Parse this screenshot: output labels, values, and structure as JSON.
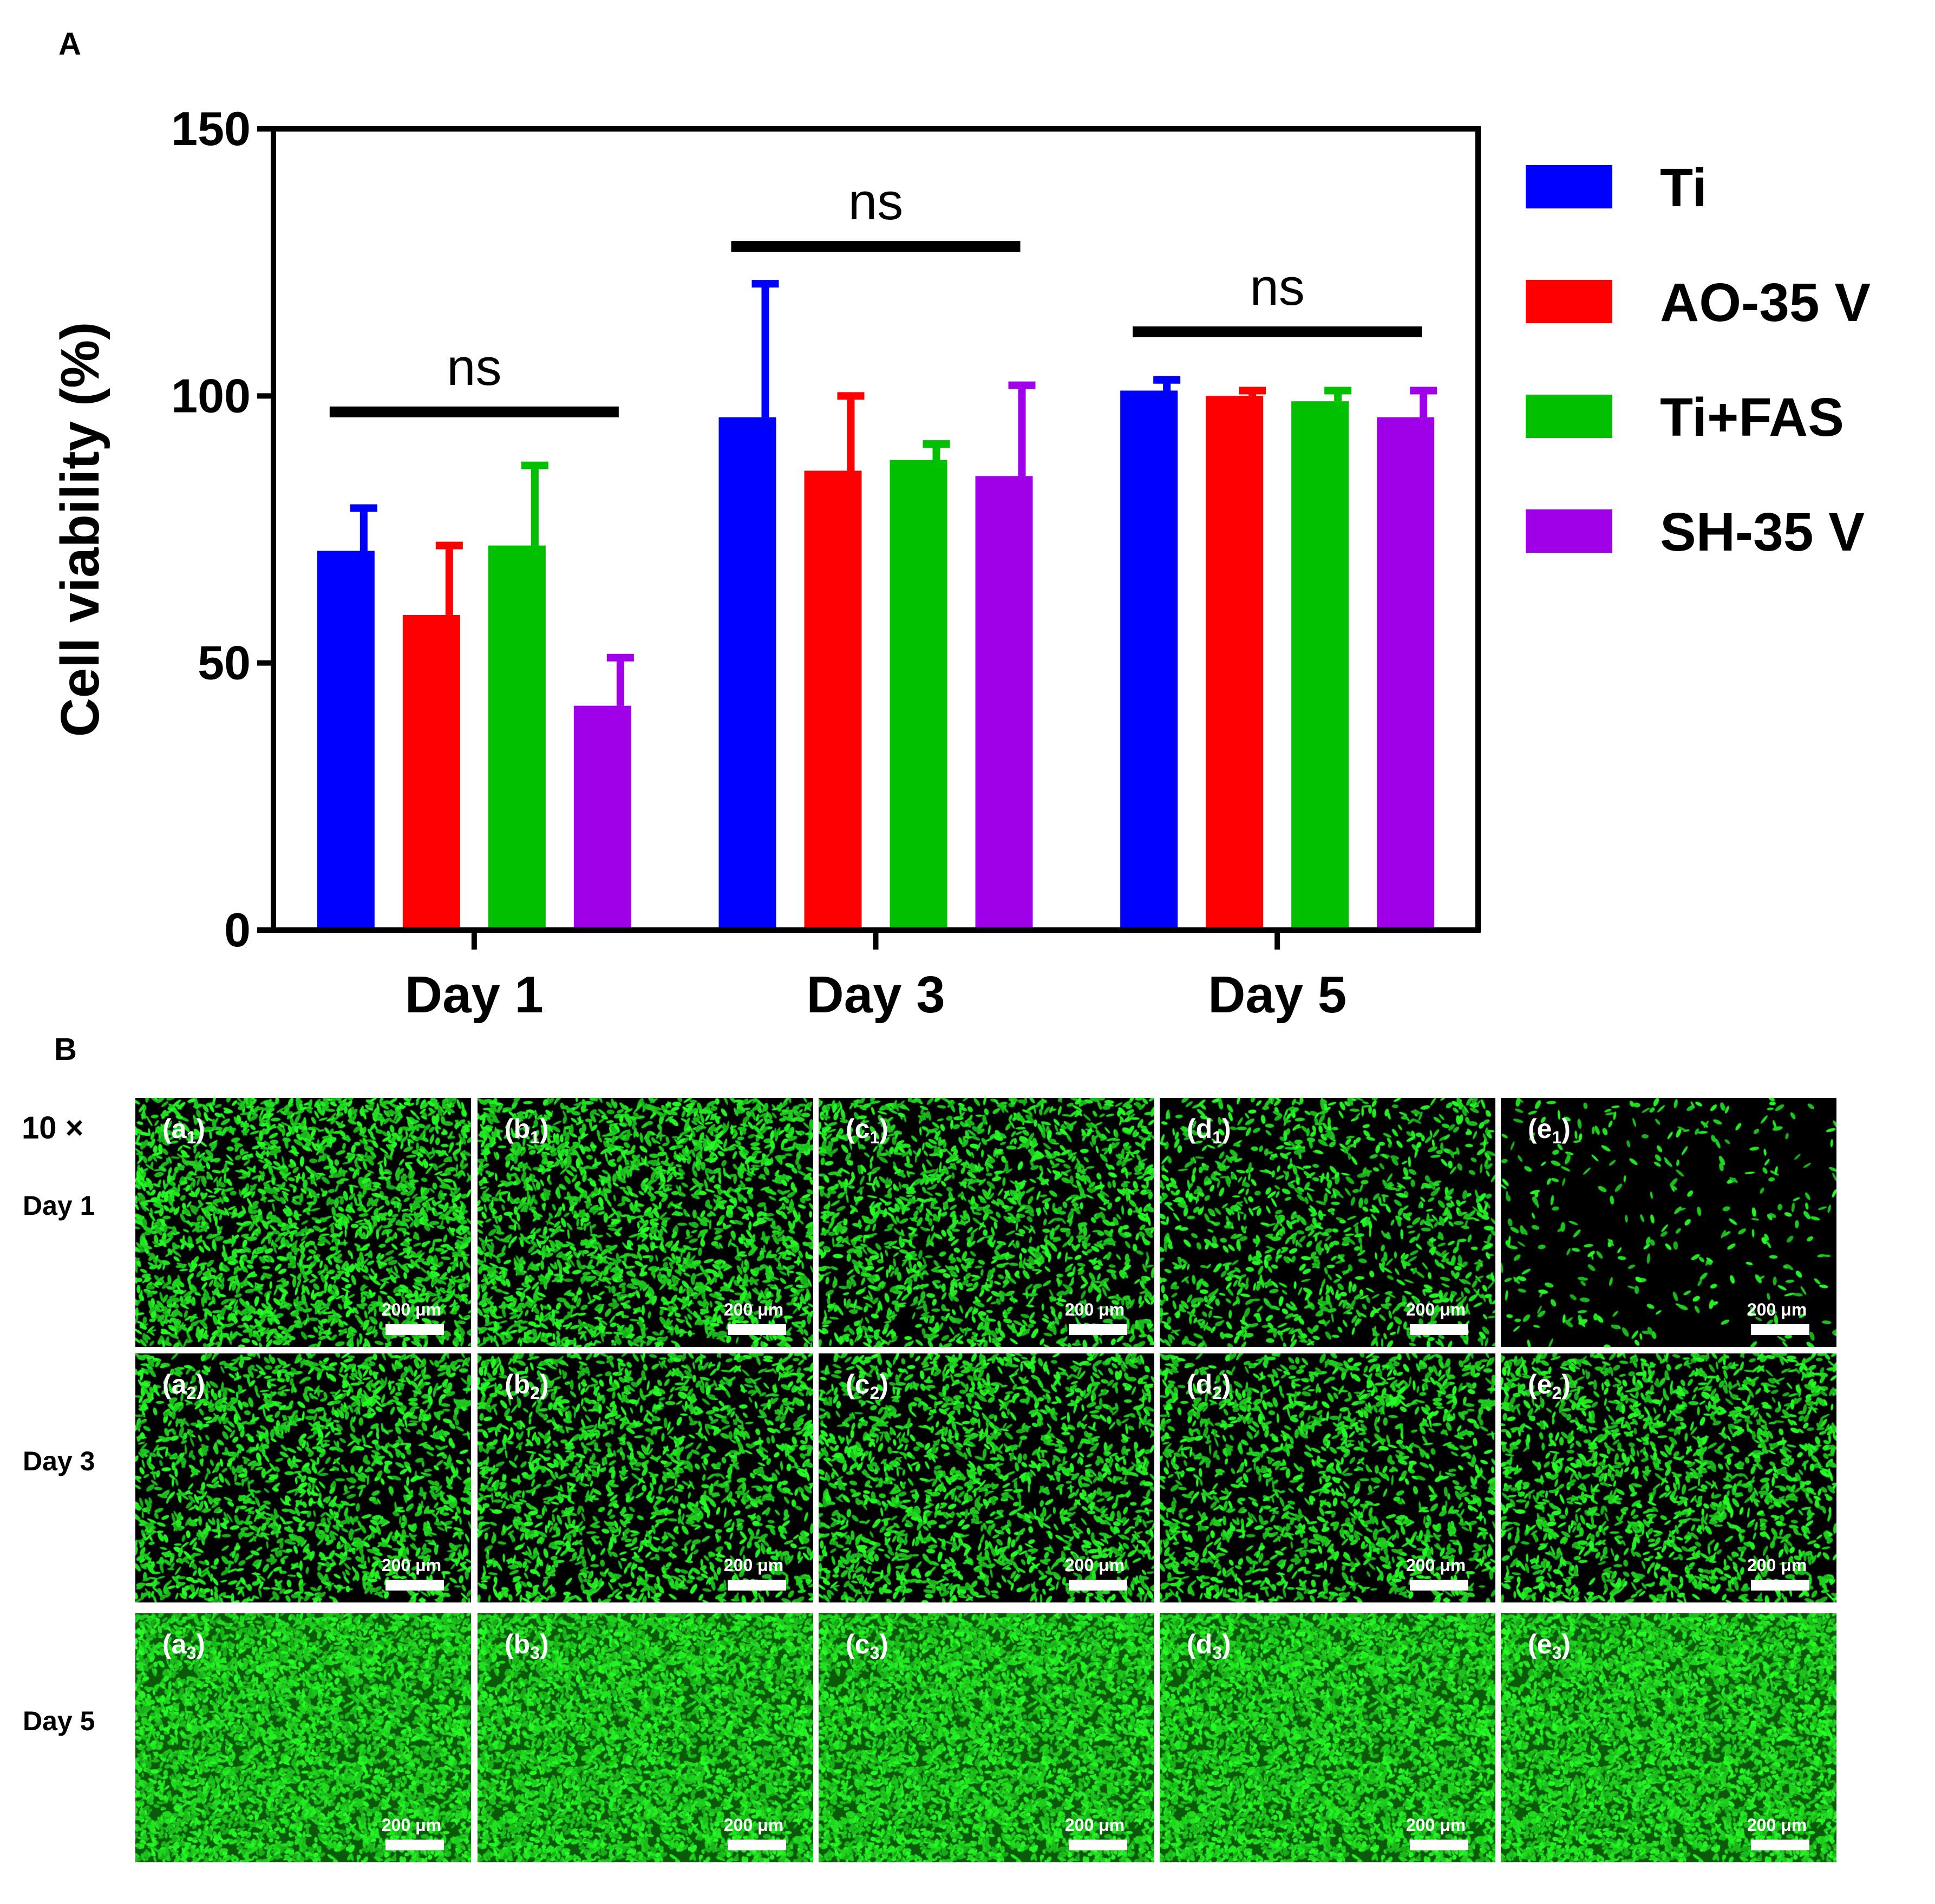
{
  "panel_a_label": "A",
  "panel_b_label": "B",
  "chart_data": {
    "type": "bar",
    "categories": [
      "Day 1",
      "Day 3",
      "Day 5"
    ],
    "ylabel": "Cell viability (%)",
    "ylim": [
      0,
      150
    ],
    "yticks": [
      0,
      50,
      100,
      150
    ],
    "legend_position": "right",
    "series": [
      {
        "name": "Ti",
        "color": "#0000ff",
        "values": [
          71,
          96,
          101
        ],
        "errors": [
          8,
          25,
          2
        ]
      },
      {
        "name": "AO-35 V",
        "color": "#ff0000",
        "values": [
          59,
          86,
          100
        ],
        "errors": [
          13,
          14,
          1
        ]
      },
      {
        "name": "Ti+FAS",
        "color": "#00c000",
        "values": [
          72,
          88,
          99
        ],
        "errors": [
          15,
          3,
          2
        ]
      },
      {
        "name": "SH-35 V",
        "color": "#a000e8",
        "values": [
          42,
          85,
          96
        ],
        "errors": [
          9,
          17,
          5
        ]
      }
    ],
    "significance": [
      {
        "group": "Day 1",
        "label": "ns",
        "y": 97
      },
      {
        "group": "Day 3",
        "label": "ns",
        "y": 128
      },
      {
        "group": "Day 5",
        "label": "ns",
        "y": 112
      }
    ]
  },
  "micrographs": {
    "magnification": "10 ×",
    "rows": [
      {
        "label": "Day 1",
        "index": "1"
      },
      {
        "label": "Day 3",
        "index": "2"
      },
      {
        "label": "Day 5",
        "index": "3"
      }
    ],
    "columns": [
      "a",
      "b",
      "c",
      "d",
      "e"
    ],
    "scale_bar": "200 μm",
    "cell_color": "#22ee22",
    "density": [
      [
        0.9,
        0.85,
        0.65,
        0.45,
        0.12
      ],
      [
        0.7,
        0.65,
        0.68,
        0.6,
        0.66
      ],
      [
        1.0,
        1.0,
        1.0,
        1.0,
        1.0
      ]
    ]
  }
}
